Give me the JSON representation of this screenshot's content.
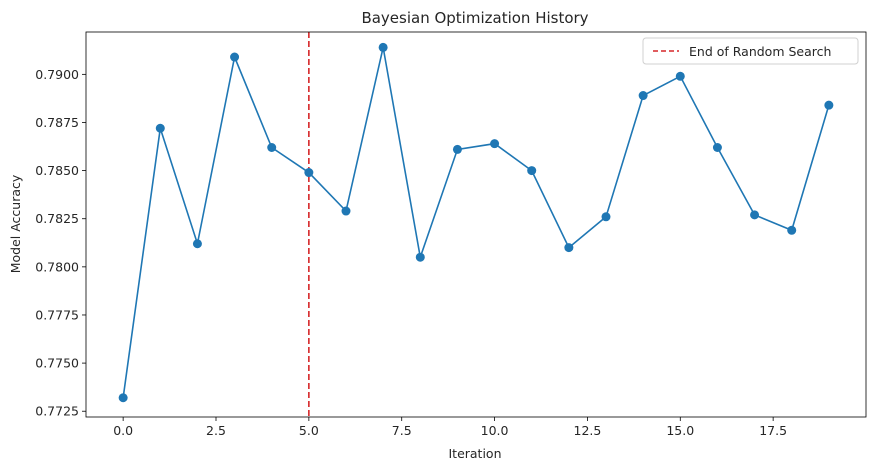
{
  "chart_data": {
    "type": "line",
    "title": "Bayesian Optimization History",
    "xlabel": "Iteration",
    "ylabel": "Model Accuracy",
    "xlim": [
      -1.0,
      20.0
    ],
    "ylim": [
      0.7722,
      0.7922
    ],
    "x_ticks": [
      0.0,
      2.5,
      5.0,
      7.5,
      10.0,
      12.5,
      15.0,
      17.5
    ],
    "x_tick_labels": [
      "0.0",
      "2.5",
      "5.0",
      "7.5",
      "10.0",
      "12.5",
      "15.0",
      "17.5"
    ],
    "y_ticks": [
      0.7725,
      0.775,
      0.7775,
      0.78,
      0.7825,
      0.785,
      0.7875,
      0.79
    ],
    "y_tick_labels": [
      "0.7725",
      "0.7750",
      "0.7775",
      "0.7800",
      "0.7825",
      "0.7850",
      "0.7875",
      "0.7900"
    ],
    "grid": false,
    "legend_position": "top-right",
    "series": [
      {
        "color": "#1f77b4",
        "x": [
          0,
          1,
          2,
          3,
          4,
          5,
          6,
          7,
          8,
          9,
          10,
          11,
          12,
          13,
          14,
          15,
          16,
          17,
          18,
          19
        ],
        "values": [
          0.7732,
          0.7872,
          0.7812,
          0.7909,
          0.7862,
          0.7849,
          0.7829,
          0.7914,
          0.7805,
          0.7861,
          0.7864,
          0.785,
          0.781,
          0.7826,
          0.7889,
          0.7899,
          0.7862,
          0.7827,
          0.7819,
          0.7884
        ]
      }
    ],
    "vline": {
      "x": 5,
      "color": "#d62728",
      "style": "dashed",
      "label": "End of Random Search"
    }
  }
}
